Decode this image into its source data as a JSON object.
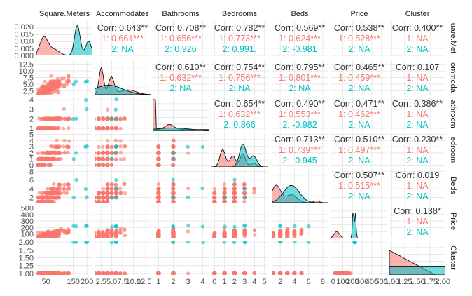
{
  "chart_data": {
    "type": "scatter",
    "title": "",
    "variables": [
      "Square.Meters",
      "Accommodates",
      "Bathrooms",
      "Bedrooms",
      "Beds",
      "Price",
      "Cluster"
    ],
    "right_strip_labels": [
      "uare.Met",
      "ommoda",
      "athroom",
      "edroom",
      "Beds",
      "Price",
      "Cluster"
    ],
    "groups": [
      {
        "name": "1",
        "color": "#F8766D"
      },
      {
        "name": "2",
        "color": "#00BFC4"
      }
    ],
    "x_axis_ticks": [
      [
        "50",
        "150",
        "200"
      ],
      [
        "2.5",
        "5.0",
        "7.5",
        "10.0",
        "12.5"
      ],
      [
        "1",
        "2",
        "3",
        "4"
      ],
      [
        "0",
        "1",
        "2",
        "3",
        "4",
        "5"
      ],
      [
        "2",
        "4",
        "6",
        "8"
      ],
      [
        "0",
        "100",
        "200",
        "300",
        "400",
        "500"
      ],
      [
        "1.00",
        "1.25",
        "1.50",
        "1.75",
        "2.00"
      ]
    ],
    "y_axis_ticks": [
      [
        "0.000",
        "0.005",
        "0.010",
        "0.015",
        "0.020"
      ],
      [
        "2.5",
        "5.0",
        "7.5",
        "10.0",
        "12.5"
      ],
      [
        "1",
        "2",
        "3",
        "4"
      ],
      [
        "0",
        "1",
        "2",
        "3",
        "4",
        "5"
      ],
      [
        "2",
        "4",
        "6",
        "8"
      ],
      [
        "100",
        "200",
        "300",
        "400",
        "500"
      ],
      [
        "1.00",
        "1.25",
        "1.50",
        "1.75",
        "2.00"
      ]
    ],
    "correlations": [
      {
        "row": 0,
        "col": 1,
        "overall": "Corr: 0.643**",
        "g1": "1: 0.661***",
        "g2": "2:   NA"
      },
      {
        "row": 0,
        "col": 2,
        "overall": "Corr: 0.708**",
        "g1": "1: 0.656***",
        "g2": "2: 0.926"
      },
      {
        "row": 0,
        "col": 3,
        "overall": "Corr: 0.782**",
        "g1": "1: 0.773***",
        "g2": "2: 0.991."
      },
      {
        "row": 0,
        "col": 4,
        "overall": "Corr: 0.569**",
        "g1": "1: 0.624***",
        "g2": "2: -0.981"
      },
      {
        "row": 0,
        "col": 5,
        "overall": "Corr: 0.538**",
        "g1": "1: 0.528***",
        "g2": "2:  NA"
      },
      {
        "row": 0,
        "col": 6,
        "overall": "Corr: 0.400**",
        "g1": "1:    NA",
        "g2": "2:    NA"
      },
      {
        "row": 1,
        "col": 2,
        "overall": "Corr: 0.610**",
        "g1": "1: 0.632***",
        "g2": "2:   NA"
      },
      {
        "row": 1,
        "col": 3,
        "overall": "Corr: 0.754**",
        "g1": "1: 0.756***",
        "g2": "2:   NA"
      },
      {
        "row": 1,
        "col": 4,
        "overall": "Corr: 0.795**",
        "g1": "1: 0.801***",
        "g2": "2:   NA"
      },
      {
        "row": 1,
        "col": 5,
        "overall": "Corr: 0.465**",
        "g1": "1: 0.459***",
        "g2": "2:  NA"
      },
      {
        "row": 1,
        "col": 6,
        "overall": "Corr: 0.107",
        "g1": "1:    NA",
        "g2": "2:    NA"
      },
      {
        "row": 2,
        "col": 3,
        "overall": "Corr: 0.654**",
        "g1": "1: 0.632***",
        "g2": "2: 0.866"
      },
      {
        "row": 2,
        "col": 4,
        "overall": "Corr: 0.490**",
        "g1": "1: 0.553***",
        "g2": "2: -0.982"
      },
      {
        "row": 2,
        "col": 5,
        "overall": "Corr: 0.471**",
        "g1": "1: 0.462***",
        "g2": "2:  NA"
      },
      {
        "row": 2,
        "col": 6,
        "overall": "Corr: 0.386**",
        "g1": "1:    NA",
        "g2": "2:    NA"
      },
      {
        "row": 3,
        "col": 4,
        "overall": "Corr: 0.713**",
        "g1": "1: 0.739***",
        "g2": "2: -0.945"
      },
      {
        "row": 3,
        "col": 5,
        "overall": "Corr: 0.510**",
        "g1": "1: 0.497***",
        "g2": "2:  NA"
      },
      {
        "row": 3,
        "col": 6,
        "overall": "Corr: 0.230**",
        "g1": "1:    NA",
        "g2": "2:    NA"
      },
      {
        "row": 4,
        "col": 5,
        "overall": "Corr: 0.507**",
        "g1": "1: 0.515***",
        "g2": "2:  NA"
      },
      {
        "row": 4,
        "col": 6,
        "overall": "Corr: 0.019",
        "g1": "1:    NA",
        "g2": "2:    NA"
      },
      {
        "row": 5,
        "col": 6,
        "overall": "Corr: 0.138*",
        "g1": "1:    NA",
        "g2": "2: NA"
      }
    ],
    "legend": "none",
    "grid": true
  }
}
